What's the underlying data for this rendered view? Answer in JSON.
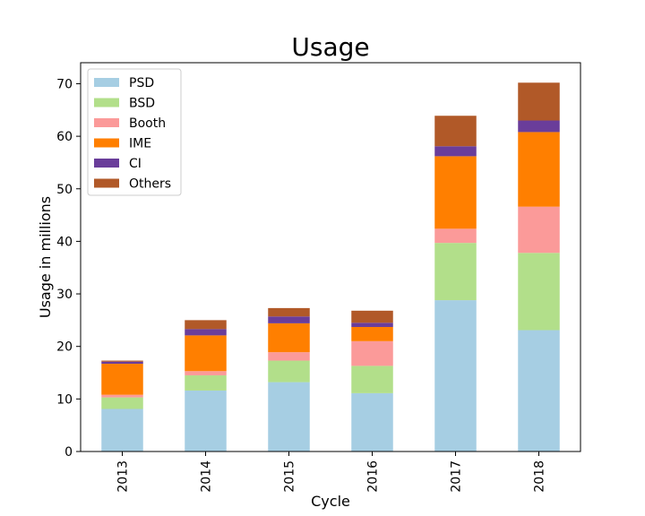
{
  "chart_data": {
    "type": "bar",
    "stacked": true,
    "title": "Usage",
    "xlabel": "Cycle",
    "ylabel": "Usage in millions",
    "ylim": [
      0,
      74
    ],
    "yticks": [
      0,
      10,
      20,
      30,
      40,
      50,
      60,
      70
    ],
    "grid": false,
    "legend_position": "top-left",
    "categories": [
      "2013",
      "2014",
      "2015",
      "2016",
      "2017",
      "2018"
    ],
    "series": [
      {
        "name": "PSD",
        "color": "#a6cee3",
        "values": [
          8.1,
          11.6,
          13.2,
          11.1,
          28.8,
          23.1
        ]
      },
      {
        "name": "BSD",
        "color": "#b2df8a",
        "values": [
          2.2,
          2.9,
          4.1,
          5.2,
          10.9,
          14.7
        ]
      },
      {
        "name": "Booth",
        "color": "#fb9a99",
        "values": [
          0.5,
          0.8,
          1.6,
          4.7,
          2.7,
          8.8
        ]
      },
      {
        "name": "IME",
        "color": "#ff7f00",
        "values": [
          5.9,
          6.8,
          5.5,
          2.7,
          13.8,
          14.2
        ]
      },
      {
        "name": "CI",
        "color": "#6a3d9a",
        "values": [
          0.4,
          1.2,
          1.3,
          0.8,
          1.9,
          2.2
        ]
      },
      {
        "name": "Others",
        "color": "#b15928",
        "values": [
          0.2,
          1.7,
          1.6,
          2.3,
          5.8,
          7.2
        ]
      }
    ]
  }
}
